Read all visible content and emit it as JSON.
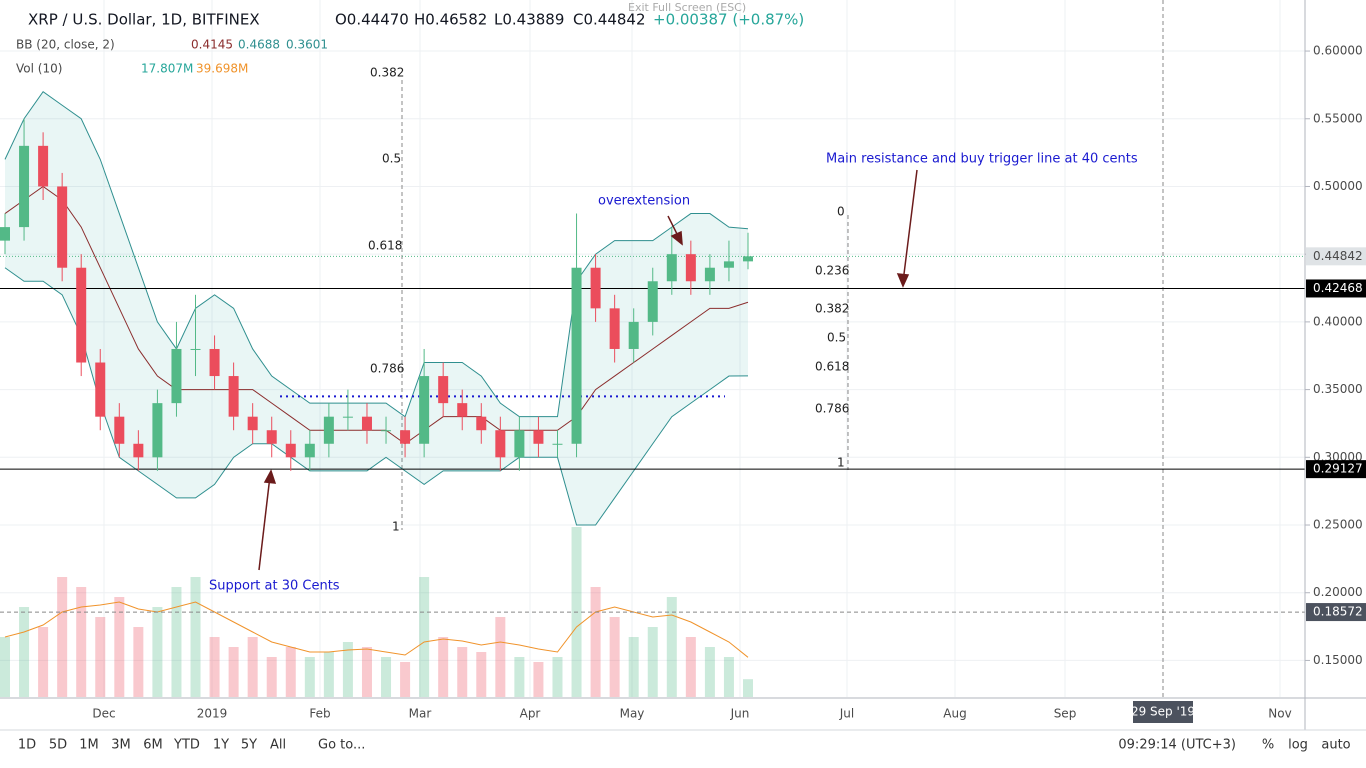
{
  "header": {
    "symbol": "XRP / U.S. Dollar, 1D, BITFINEX",
    "ohlc": [
      "O0.44470",
      "H0.46582",
      "L0.43889",
      "C0.44842",
      "+0.00387 (+0.87%)"
    ],
    "bb_name": "BB (20, close, 2)",
    "bb_values": [
      "0.4145",
      "0.4688",
      "0.3601"
    ],
    "vol_name": "Vol (10)",
    "vol_values": [
      "17.807M",
      "39.698M"
    ],
    "exit": "Exit Full Screen (ESC)"
  },
  "chart_data": {
    "type": "candlestick",
    "open": [
      0.46,
      0.47,
      0.53,
      0.5,
      0.44,
      0.37,
      0.33,
      0.31,
      0.3,
      0.34,
      0.38,
      0.38,
      0.36,
      0.33,
      0.32,
      0.31,
      0.3,
      0.31,
      0.33,
      0.33,
      0.32,
      0.32,
      0.31,
      0.36,
      0.34,
      0.33,
      0.32,
      0.3,
      0.32,
      0.31,
      0.31,
      0.44,
      0.41,
      0.38,
      0.4,
      0.43,
      0.45,
      0.43,
      0.44,
      0.4447
    ],
    "high": [
      0.48,
      0.55,
      0.54,
      0.51,
      0.45,
      0.38,
      0.34,
      0.32,
      0.35,
      0.4,
      0.42,
      0.39,
      0.37,
      0.34,
      0.33,
      0.32,
      0.32,
      0.34,
      0.35,
      0.34,
      0.33,
      0.33,
      0.38,
      0.37,
      0.35,
      0.34,
      0.33,
      0.33,
      0.33,
      0.32,
      0.48,
      0.45,
      0.42,
      0.41,
      0.44,
      0.47,
      0.46,
      0.45,
      0.46,
      0.46582
    ],
    "low": [
      0.45,
      0.46,
      0.49,
      0.43,
      0.36,
      0.32,
      0.3,
      0.29,
      0.29,
      0.33,
      0.36,
      0.35,
      0.32,
      0.31,
      0.3,
      0.29,
      0.29,
      0.3,
      0.32,
      0.31,
      0.31,
      0.3,
      0.3,
      0.33,
      0.32,
      0.31,
      0.29,
      0.29,
      0.3,
      0.3,
      0.3,
      0.4,
      0.37,
      0.37,
      0.39,
      0.42,
      0.42,
      0.42,
      0.43,
      0.43889
    ],
    "close": [
      0.47,
      0.53,
      0.5,
      0.44,
      0.37,
      0.33,
      0.31,
      0.3,
      0.34,
      0.38,
      0.38,
      0.36,
      0.33,
      0.32,
      0.31,
      0.3,
      0.31,
      0.33,
      0.33,
      0.32,
      0.32,
      0.31,
      0.36,
      0.34,
      0.33,
      0.32,
      0.3,
      0.32,
      0.31,
      0.31,
      0.44,
      0.41,
      0.38,
      0.4,
      0.43,
      0.45,
      0.43,
      0.44,
      0.4447,
      0.44842
    ],
    "bb_upper": [
      0.52,
      0.55,
      0.57,
      0.56,
      0.55,
      0.52,
      0.48,
      0.44,
      0.4,
      0.38,
      0.41,
      0.42,
      0.41,
      0.38,
      0.36,
      0.35,
      0.34,
      0.34,
      0.34,
      0.34,
      0.34,
      0.33,
      0.37,
      0.37,
      0.37,
      0.36,
      0.34,
      0.33,
      0.33,
      0.33,
      0.43,
      0.45,
      0.46,
      0.46,
      0.46,
      0.47,
      0.48,
      0.48,
      0.47,
      0.4688
    ],
    "bb_mid": [
      0.48,
      0.49,
      0.5,
      0.49,
      0.47,
      0.44,
      0.41,
      0.38,
      0.36,
      0.35,
      0.35,
      0.35,
      0.35,
      0.35,
      0.34,
      0.33,
      0.32,
      0.32,
      0.32,
      0.32,
      0.32,
      0.31,
      0.32,
      0.33,
      0.33,
      0.33,
      0.32,
      0.32,
      0.32,
      0.32,
      0.33,
      0.35,
      0.36,
      0.37,
      0.38,
      0.39,
      0.4,
      0.41,
      0.41,
      0.4145
    ],
    "bb_lower": [
      0.44,
      0.43,
      0.43,
      0.42,
      0.39,
      0.34,
      0.3,
      0.29,
      0.28,
      0.27,
      0.27,
      0.28,
      0.3,
      0.31,
      0.31,
      0.3,
      0.29,
      0.29,
      0.29,
      0.29,
      0.3,
      0.29,
      0.28,
      0.29,
      0.29,
      0.29,
      0.29,
      0.3,
      0.3,
      0.3,
      0.25,
      0.25,
      0.27,
      0.29,
      0.31,
      0.33,
      0.34,
      0.35,
      0.36,
      0.3601
    ],
    "volume": [
      60,
      90,
      70,
      120,
      110,
      80,
      100,
      70,
      90,
      110,
      120,
      60,
      50,
      60,
      40,
      50,
      40,
      45,
      55,
      50,
      40,
      35,
      120,
      60,
      50,
      45,
      80,
      40,
      35,
      40,
      170,
      110,
      80,
      60,
      70,
      100,
      60,
      50,
      40,
      17.807
    ],
    "volume_ma": [
      60,
      65,
      72,
      85,
      90,
      92,
      95,
      88,
      85,
      90,
      95,
      85,
      75,
      65,
      55,
      50,
      45,
      45,
      47,
      48,
      45,
      42,
      55,
      58,
      56,
      52,
      55,
      52,
      48,
      45,
      70,
      85,
      90,
      85,
      80,
      82,
      75,
      65,
      55,
      39.698
    ],
    "up_color": "#53b987",
    "down_color": "#eb4d5c",
    "ylim": [
      0.123,
      0.6377
    ],
    "yticks": [
      {
        "value": 0.6,
        "label": "0.60000"
      },
      {
        "value": 0.55,
        "label": "0.55000"
      },
      {
        "value": 0.5,
        "label": "0.50000"
      },
      {
        "value": 0.45,
        "label": "0.45000"
      },
      {
        "value": 0.4,
        "label": "0.40000"
      },
      {
        "value": 0.35,
        "label": "0.35000"
      },
      {
        "value": 0.3,
        "label": "0.30000"
      },
      {
        "value": 0.25,
        "label": "0.25000"
      },
      {
        "value": 0.2,
        "label": "0.20000"
      },
      {
        "value": 0.15,
        "label": "0.15000"
      }
    ],
    "hlines": [
      {
        "value": 0.42468,
        "label": "0.42468"
      },
      {
        "value": 0.29127,
        "label": "0.29127"
      }
    ],
    "last_price": {
      "value": 0.44842,
      "label": "0.44842"
    },
    "crosshair": {
      "value": 0.18572,
      "label": "0.18572"
    },
    "support_line": 0.345,
    "xticks": [
      "Dec",
      "2019",
      "Feb",
      "Mar",
      "Apr",
      "May",
      "Jun",
      "Jul",
      "Aug",
      "Sep",
      "Nov"
    ],
    "crosshair_date": "29 Sep '19",
    "annotations": [
      "Main resistance and buy trigger line at 40 cents",
      "overextension",
      "Support at 30 Cents"
    ],
    "fib_left": [
      0.382,
      0.5,
      0.618,
      0.786,
      1
    ],
    "fib_right": [
      0,
      0.236,
      0.382,
      0.5,
      0.618,
      0.786,
      1
    ]
  },
  "toolbar": {
    "ranges": [
      "1D",
      "5D",
      "1M",
      "3M",
      "6M",
      "YTD",
      "1Y",
      "5Y",
      "All"
    ],
    "goto": "Go to...",
    "time": "09:29:14 (UTC+3)",
    "scale": [
      "%",
      "log",
      "auto"
    ]
  }
}
